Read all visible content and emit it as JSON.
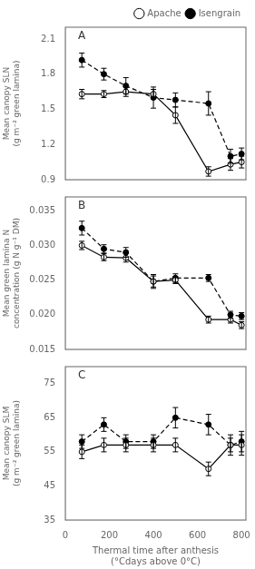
{
  "chart_data": [
    {
      "type": "line",
      "annotations": [
        "A"
      ],
      "y_label": "Mean canopy SLN\n(g m⁻² green lamina)",
      "x": [
        75,
        175,
        275,
        400,
        500,
        650,
        750,
        800
      ],
      "series": [
        {
          "name": "Apache",
          "color": "#000000",
          "marker": "open_circle",
          "line_style": "solid",
          "values": [
            1.63,
            1.63,
            1.65,
            1.63,
            1.45,
            0.97,
            1.03,
            1.05
          ],
          "errors": [
            0.04,
            0.03,
            0.04,
            0.04,
            0.07,
            0.04,
            0.05,
            0.05
          ]
        },
        {
          "name": "Isengrain",
          "color": "#000000",
          "marker": "filled_circle",
          "line_style": "dashed",
          "values": [
            1.92,
            1.8,
            1.7,
            1.6,
            1.58,
            1.55,
            1.1,
            1.12
          ],
          "errors": [
            0.06,
            0.05,
            0.07,
            0.09,
            0.06,
            0.1,
            0.06,
            0.05
          ]
        }
      ],
      "xlim": [
        0,
        820
      ],
      "xticks": [
        0,
        200,
        400,
        600,
        800
      ],
      "ylim": [
        0.9,
        2.2
      ],
      "yticks": [
        0.9,
        1.2,
        1.5,
        1.8,
        2.1
      ],
      "grid": false,
      "legend": "upper right",
      "tick_labels": "y"
    },
    {
      "type": "line",
      "annotations": [
        "B"
      ],
      "y_label": "Mean green lamina N\nconcentration (g N g⁻¹ DM)",
      "x": [
        75,
        175,
        275,
        400,
        500,
        650,
        750,
        800
      ],
      "series": [
        {
          "color": "#000000",
          "marker": "open_circle",
          "line_style": "solid",
          "values": [
            0.03,
            0.0283,
            0.0282,
            0.0248,
            0.025,
            0.0193,
            0.0193,
            0.0185
          ],
          "errors": [
            0.0006,
            0.0005,
            0.0006,
            0.0008,
            0.0005,
            0.0005,
            0.0005,
            0.0005
          ]
        },
        {
          "color": "#000000",
          "marker": "filled_circle",
          "line_style": "dashed",
          "values": [
            0.0325,
            0.0295,
            0.029,
            0.0248,
            0.0253,
            0.0253,
            0.02,
            0.0198
          ],
          "errors": [
            0.001,
            0.0006,
            0.0007,
            0.001,
            0.0006,
            0.0005,
            0.0005,
            0.0005
          ]
        }
      ],
      "xlim": [
        0,
        820
      ],
      "xticks": [
        0,
        200,
        400,
        600,
        800
      ],
      "ylim": [
        0.015,
        0.037
      ],
      "yticks": [
        0.015,
        {
          "value": 0.02,
          "label": "0.020"
        },
        0.025,
        {
          "value": 0.03,
          "label": "0.030"
        },
        0.035
      ],
      "grid": false,
      "tick_labels": "y"
    },
    {
      "type": "line",
      "annotations": [
        "C"
      ],
      "y_label": "Mean canopy SLM\n(g m⁻² green lamina)",
      "x_label": "Thermal time after anthesis\n(°Cdays above 0°C)",
      "x": [
        75,
        175,
        275,
        400,
        500,
        650,
        750,
        800
      ],
      "series": [
        {
          "color": "#000000",
          "marker": "open_circle",
          "line_style": "solid",
          "values": [
            55,
            57,
            57,
            57,
            57,
            50,
            57,
            57
          ],
          "errors": [
            2,
            2,
            2,
            2,
            2,
            2,
            2,
            3
          ]
        },
        {
          "color": "#000000",
          "marker": "filled_circle",
          "line_style": "dashed",
          "values": [
            58,
            63,
            58,
            58,
            65,
            63,
            57,
            58
          ],
          "errors": [
            2,
            2,
            2,
            2,
            3,
            3,
            3,
            3
          ]
        }
      ],
      "xlim": [
        0,
        820
      ],
      "xticks": [
        0,
        200,
        400,
        600,
        800
      ],
      "ylim": [
        35,
        80
      ],
      "yticks": [
        35,
        45,
        55,
        65,
        75
      ],
      "grid": false
    }
  ]
}
